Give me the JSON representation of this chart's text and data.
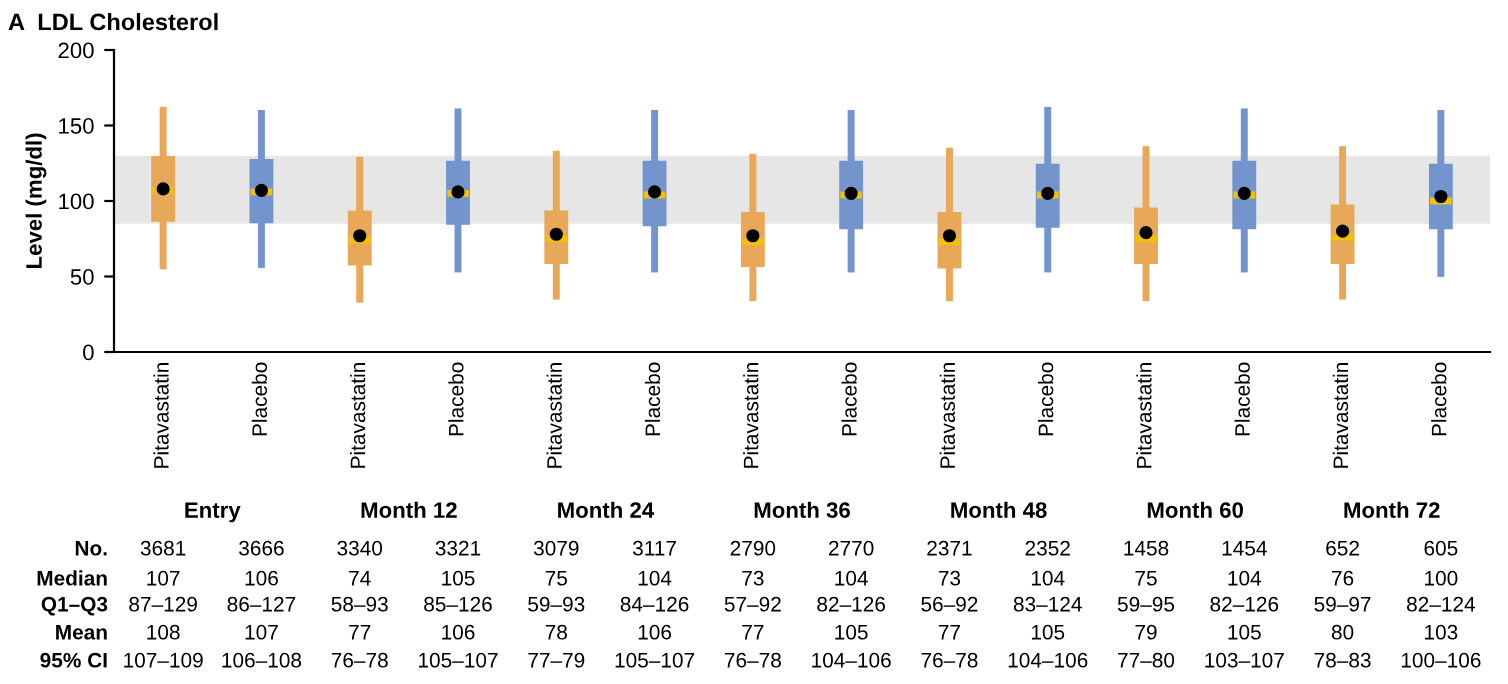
{
  "chart_data": {
    "type": "box",
    "title": "A  LDL Cholesterol",
    "ylabel": "Level (mg/dl)",
    "categories": [
      "Pitavastatin",
      "Placebo",
      "Pitavastatin",
      "Placebo",
      "Pitavastatin",
      "Placebo",
      "Pitavastatin",
      "Placebo",
      "Pitavastatin",
      "Placebo",
      "Pitavastatin",
      "Placebo",
      "Pitavastatin",
      "Placebo"
    ],
    "colors": [
      "#e8a857",
      "#7394cc",
      "#e8a857",
      "#7394cc",
      "#e8a857",
      "#7394cc",
      "#e8a857",
      "#7394cc",
      "#e8a857",
      "#7394cc",
      "#e8a857",
      "#7394cc",
      "#e8a857",
      "#7394cc"
    ],
    "boxes": [
      {
        "low": 57,
        "q1": 87,
        "median": 107,
        "q3": 129,
        "high": 160,
        "mean": 108
      },
      {
        "low": 58,
        "q1": 86,
        "median": 106,
        "q3": 127,
        "high": 158,
        "mean": 107
      },
      {
        "low": 35,
        "q1": 58,
        "median": 74,
        "q3": 93,
        "high": 127,
        "mean": 77
      },
      {
        "low": 55,
        "q1": 85,
        "median": 105,
        "q3": 126,
        "high": 159,
        "mean": 106
      },
      {
        "low": 37,
        "q1": 59,
        "median": 75,
        "q3": 93,
        "high": 131,
        "mean": 78
      },
      {
        "low": 55,
        "q1": 84,
        "median": 104,
        "q3": 126,
        "high": 158,
        "mean": 106
      },
      {
        "low": 36,
        "q1": 57,
        "median": 73,
        "q3": 92,
        "high": 129,
        "mean": 77
      },
      {
        "low": 55,
        "q1": 82,
        "median": 104,
        "q3": 126,
        "high": 158,
        "mean": 105
      },
      {
        "low": 36,
        "q1": 56,
        "median": 73,
        "q3": 92,
        "high": 133,
        "mean": 77
      },
      {
        "low": 55,
        "q1": 83,
        "median": 104,
        "q3": 124,
        "high": 160,
        "mean": 105
      },
      {
        "low": 36,
        "q1": 59,
        "median": 75,
        "q3": 95,
        "high": 134,
        "mean": 79
      },
      {
        "low": 55,
        "q1": 82,
        "median": 104,
        "q3": 126,
        "high": 159,
        "mean": 105
      },
      {
        "low": 37,
        "q1": 59,
        "median": 76,
        "q3": 97,
        "high": 134,
        "mean": 80
      },
      {
        "low": 52,
        "q1": 82,
        "median": 100,
        "q3": 124,
        "high": 158,
        "mean": 103
      }
    ],
    "ylim": [
      0,
      200
    ],
    "yticks": [
      0,
      50,
      100,
      150,
      200
    ],
    "bands": [
      {
        "axis": "y",
        "from": 85,
        "to": 130,
        "color": "#e6e6e6"
      }
    ],
    "annotations": [
      "Entry",
      "Month 12",
      "Month 24",
      "Month 36",
      "Month 48",
      "Month 60",
      "Month 72",
      "No.",
      "3681",
      "3666",
      "3340",
      "3321",
      "3079",
      "3117",
      "2790",
      "2770",
      "2371",
      "2352",
      "1458",
      "1454",
      "652",
      "605",
      "Median",
      "107",
      "106",
      "74",
      "105",
      "75",
      "104",
      "73",
      "104",
      "73",
      "104",
      "75",
      "104",
      "76",
      "100",
      "Q1–Q3",
      "87–129",
      "86–127",
      "58–93",
      "85–126",
      "59–93",
      "84–126",
      "57–92",
      "82–126",
      "56–92",
      "83–124",
      "59–95",
      "82–126",
      "59–97",
      "82–124",
      "Mean",
      "108",
      "107",
      "77",
      "106",
      "78",
      "106",
      "77",
      "105",
      "77",
      "105",
      "79",
      "105",
      "80",
      "103",
      "95% CI",
      "107–109",
      "106–108",
      "76–78",
      "105–107",
      "77–79",
      "105–107",
      "76–78",
      "104–106",
      "76–78",
      "104–106",
      "77–80",
      "103–107",
      "78–83",
      "100–106"
    ]
  }
}
